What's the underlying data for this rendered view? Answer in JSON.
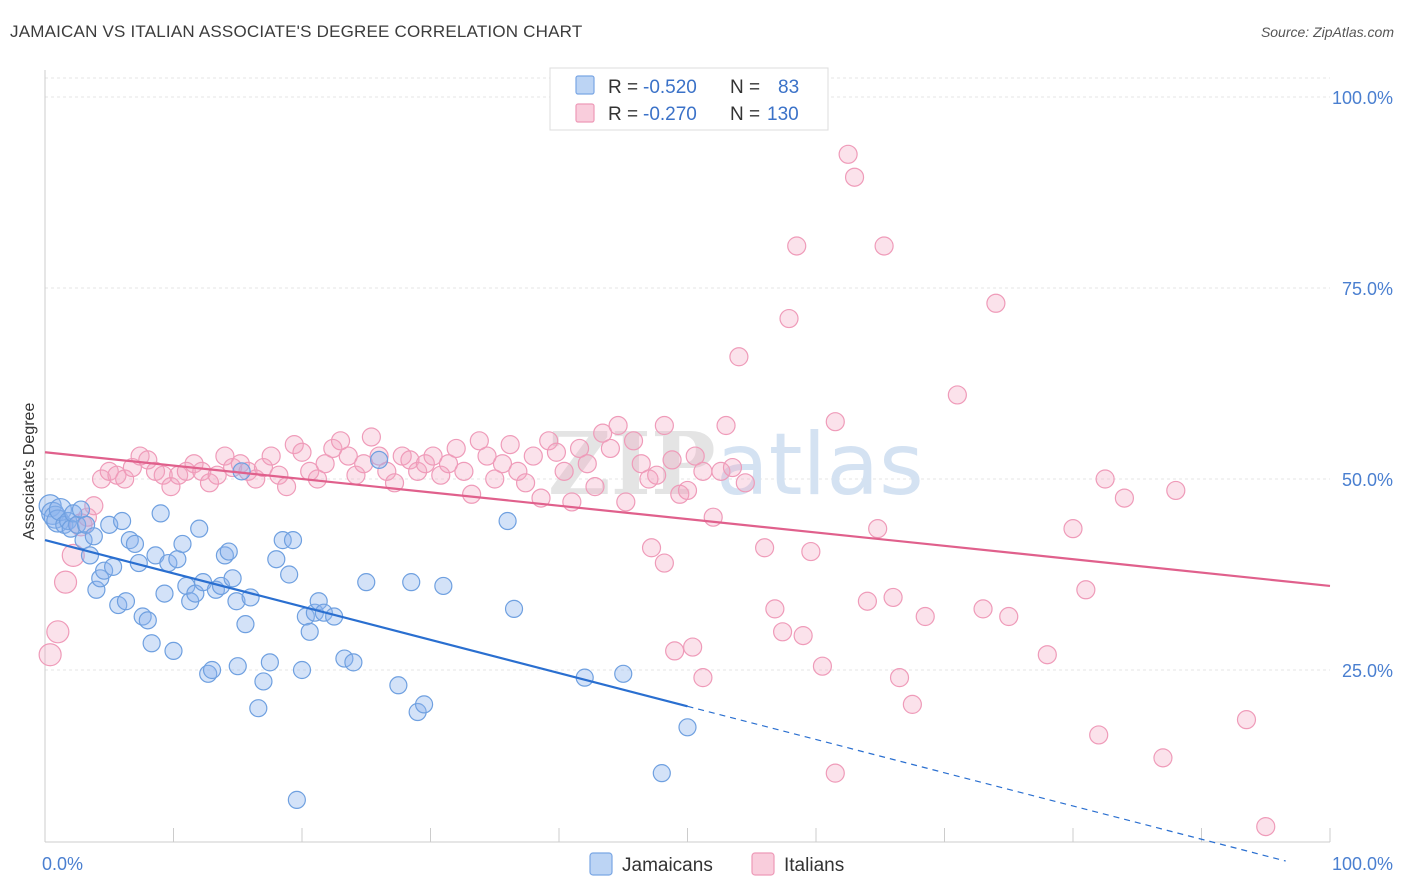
{
  "title": "JAMAICAN VS ITALIAN ASSOCIATE'S DEGREE CORRELATION CHART",
  "source": "Source: ZipAtlas.com",
  "watermark": {
    "part1": "ZIP",
    "part2": "atlas"
  },
  "colors": {
    "blue": "#6fa0e0",
    "blue_line": "#2a6fd0",
    "pink": "#f19ab8",
    "pink_line": "#e0608c",
    "tick": "#4a7fd0"
  },
  "legend": {
    "rows": [
      {
        "r_label": "R = ",
        "r_value": "-0.520",
        "n_label": "N = ",
        "n_value": "83"
      },
      {
        "r_label": "R = ",
        "r_value": "-0.270",
        "n_label": "N = ",
        "n_value": "130"
      }
    ]
  },
  "bottom_legend": [
    "Jamaicans",
    "Italians"
  ],
  "chart_data": {
    "type": "scatter",
    "title": "JAMAICAN VS ITALIAN ASSOCIATE'S DEGREE CORRELATION CHART",
    "xlabel": "",
    "ylabel": "Associate's Degree",
    "xlim": [
      0,
      100
    ],
    "ylim": [
      0,
      105
    ],
    "x_tick_labels": [
      "0.0%",
      "100.0%"
    ],
    "y_tick_labels": [
      "25.0%",
      "50.0%",
      "75.0%",
      "100.0%"
    ],
    "y_ticks": [
      25,
      50,
      75,
      100
    ],
    "grid": true,
    "legend_position": "top-center",
    "series": [
      {
        "name": "Jamaicans",
        "r": -0.52,
        "n": 83,
        "trend": {
          "x": [
            0,
            100
          ],
          "y": [
            42,
            -1.5
          ],
          "solid_until_x": 50
        },
        "points": [
          [
            0.4,
            46.5
          ],
          [
            0.6,
            45.5
          ],
          [
            0.8,
            45
          ],
          [
            1,
            44.5
          ],
          [
            1.2,
            46
          ],
          [
            1.5,
            44
          ],
          [
            1.8,
            44.5
          ],
          [
            2,
            43.5
          ],
          [
            2.2,
            45.5
          ],
          [
            2.5,
            44
          ],
          [
            2.8,
            46
          ],
          [
            3,
            42
          ],
          [
            3.2,
            44
          ],
          [
            3.5,
            40
          ],
          [
            3.8,
            42.5
          ],
          [
            4,
            35.5
          ],
          [
            4.3,
            37
          ],
          [
            4.6,
            38
          ],
          [
            5,
            44
          ],
          [
            5.3,
            38.5
          ],
          [
            5.7,
            33.5
          ],
          [
            6,
            44.5
          ],
          [
            6.3,
            34
          ],
          [
            6.6,
            42
          ],
          [
            7,
            41.5
          ],
          [
            7.3,
            39
          ],
          [
            7.6,
            32
          ],
          [
            8,
            31.5
          ],
          [
            8.3,
            28.5
          ],
          [
            8.6,
            40
          ],
          [
            9,
            45.5
          ],
          [
            9.3,
            35
          ],
          [
            9.6,
            39
          ],
          [
            10,
            27.5
          ],
          [
            10.3,
            39.5
          ],
          [
            10.7,
            41.5
          ],
          [
            11,
            36
          ],
          [
            11.3,
            34
          ],
          [
            11.7,
            35
          ],
          [
            12,
            43.5
          ],
          [
            12.3,
            36.5
          ],
          [
            12.7,
            24.5
          ],
          [
            13,
            25
          ],
          [
            13.3,
            35.5
          ],
          [
            13.7,
            36
          ],
          [
            14,
            40
          ],
          [
            14.3,
            40.5
          ],
          [
            14.6,
            37
          ],
          [
            15,
            25.5
          ],
          [
            15.3,
            51
          ],
          [
            14.9,
            34
          ],
          [
            15.6,
            31
          ],
          [
            16,
            34.5
          ],
          [
            16.6,
            20
          ],
          [
            17,
            23.5
          ],
          [
            17.5,
            26
          ],
          [
            18,
            39.5
          ],
          [
            18.5,
            42
          ],
          [
            19,
            37.5
          ],
          [
            19.3,
            42
          ],
          [
            19.6,
            8
          ],
          [
            20,
            25
          ],
          [
            20.3,
            32
          ],
          [
            20.6,
            30
          ],
          [
            21,
            32.5
          ],
          [
            21.3,
            34
          ],
          [
            21.7,
            32.5
          ],
          [
            22.5,
            32
          ],
          [
            23.3,
            26.5
          ],
          [
            24,
            26
          ],
          [
            25,
            36.5
          ],
          [
            26,
            52.5
          ],
          [
            27.5,
            23
          ],
          [
            28.5,
            36.5
          ],
          [
            29,
            19.5
          ],
          [
            29.5,
            20.5
          ],
          [
            31,
            36
          ],
          [
            36,
            44.5
          ],
          [
            36.5,
            33
          ],
          [
            42,
            24
          ],
          [
            45,
            24.5
          ],
          [
            48,
            11.5
          ],
          [
            50,
            17.5
          ]
        ]
      },
      {
        "name": "Italians",
        "r": -0.27,
        "n": 130,
        "trend": {
          "x": [
            0,
            100
          ],
          "y": [
            53.5,
            36
          ]
        },
        "points": [
          [
            0.4,
            27
          ],
          [
            1,
            30
          ],
          [
            1.6,
            36.5
          ],
          [
            2.2,
            40
          ],
          [
            2.8,
            44
          ],
          [
            3.3,
            45
          ],
          [
            3.8,
            46.5
          ],
          [
            4.4,
            50
          ],
          [
            5,
            51
          ],
          [
            5.6,
            50.5
          ],
          [
            6.2,
            50
          ],
          [
            6.8,
            51.5
          ],
          [
            7.4,
            53
          ],
          [
            8,
            52.5
          ],
          [
            8.6,
            51
          ],
          [
            9.2,
            50.5
          ],
          [
            9.8,
            49
          ],
          [
            10.4,
            50.5
          ],
          [
            11,
            51
          ],
          [
            11.6,
            52
          ],
          [
            12.2,
            51
          ],
          [
            12.8,
            49.5
          ],
          [
            13.4,
            50.5
          ],
          [
            14,
            53
          ],
          [
            14.6,
            51.5
          ],
          [
            15.2,
            52
          ],
          [
            15.8,
            51
          ],
          [
            16.4,
            50
          ],
          [
            17,
            51.5
          ],
          [
            17.6,
            53
          ],
          [
            18.2,
            50.5
          ],
          [
            18.8,
            49
          ],
          [
            19.4,
            54.5
          ],
          [
            20,
            53.5
          ],
          [
            20.6,
            51
          ],
          [
            21.2,
            50
          ],
          [
            21.8,
            52
          ],
          [
            22.4,
            54
          ],
          [
            23,
            55
          ],
          [
            23.6,
            53
          ],
          [
            24.2,
            50.5
          ],
          [
            24.8,
            52
          ],
          [
            25.4,
            55.5
          ],
          [
            26,
            53
          ],
          [
            26.6,
            51
          ],
          [
            27.2,
            49.5
          ],
          [
            27.8,
            53
          ],
          [
            28.4,
            52.5
          ],
          [
            29,
            51
          ],
          [
            29.6,
            52
          ],
          [
            30.2,
            53
          ],
          [
            30.8,
            50.5
          ],
          [
            31.4,
            52
          ],
          [
            32,
            54
          ],
          [
            32.6,
            51
          ],
          [
            33.2,
            48
          ],
          [
            33.8,
            55
          ],
          [
            34.4,
            53
          ],
          [
            35,
            50
          ],
          [
            35.6,
            52
          ],
          [
            36.2,
            54.5
          ],
          [
            36.8,
            51
          ],
          [
            37.4,
            49.5
          ],
          [
            38,
            53
          ],
          [
            38.6,
            47.5
          ],
          [
            39.2,
            55
          ],
          [
            39.8,
            53.5
          ],
          [
            40.4,
            51
          ],
          [
            41,
            47
          ],
          [
            41.6,
            54
          ],
          [
            42.2,
            52
          ],
          [
            42.8,
            49
          ],
          [
            43.4,
            56
          ],
          [
            44,
            54
          ],
          [
            44.6,
            57
          ],
          [
            45.2,
            47
          ],
          [
            45.8,
            55
          ],
          [
            46.4,
            52
          ],
          [
            47,
            50
          ],
          [
            47.6,
            50.5
          ],
          [
            48.2,
            57
          ],
          [
            48.8,
            52.5
          ],
          [
            49.4,
            48
          ],
          [
            50,
            48.5
          ],
          [
            50.6,
            53
          ],
          [
            51.2,
            51
          ],
          [
            52,
            45
          ],
          [
            52.6,
            51
          ],
          [
            53,
            57
          ],
          [
            53.5,
            51.5
          ],
          [
            54,
            66
          ],
          [
            54.5,
            49.5
          ],
          [
            47.2,
            41
          ],
          [
            48.2,
            39
          ],
          [
            49,
            27.5
          ],
          [
            50.4,
            28
          ],
          [
            51.2,
            24
          ],
          [
            56,
            41
          ],
          [
            56.8,
            33
          ],
          [
            57.4,
            30
          ],
          [
            57.9,
            71
          ],
          [
            58.5,
            80.5
          ],
          [
            59,
            29.5
          ],
          [
            59.6,
            40.5
          ],
          [
            60.5,
            25.5
          ],
          [
            61.5,
            11.5
          ],
          [
            61.5,
            57.5
          ],
          [
            62.5,
            92.5
          ],
          [
            63,
            89.5
          ],
          [
            64,
            34
          ],
          [
            64.8,
            43.5
          ],
          [
            65.3,
            80.5
          ],
          [
            66,
            34.5
          ],
          [
            66.5,
            24
          ],
          [
            67.5,
            20.5
          ],
          [
            68.5,
            32
          ],
          [
            71,
            61
          ],
          [
            73,
            33
          ],
          [
            74,
            73
          ],
          [
            75,
            32
          ],
          [
            78,
            27
          ],
          [
            80,
            43.5
          ],
          [
            81,
            35.5
          ],
          [
            82,
            16.5
          ],
          [
            82.5,
            50
          ],
          [
            84,
            47.5
          ],
          [
            87,
            13.5
          ],
          [
            88,
            48.5
          ],
          [
            93.5,
            18.5
          ],
          [
            95,
            4.5
          ]
        ]
      }
    ]
  }
}
